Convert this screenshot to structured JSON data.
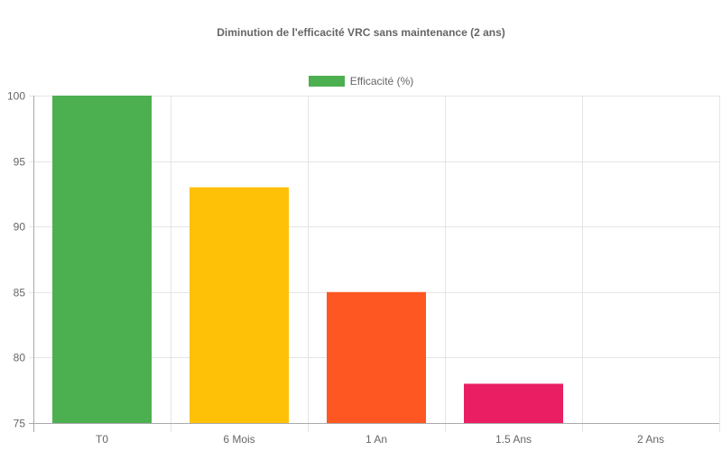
{
  "chart_data": {
    "type": "bar",
    "title": "Diminution de l'efficacité VRC sans maintenance (2 ans)",
    "categories": [
      "T0",
      "6 Mois",
      "1 An",
      "1.5 Ans",
      "2 Ans"
    ],
    "series": [
      {
        "name": "Efficacité (%)",
        "values": [
          100,
          93,
          85,
          78,
          null
        ]
      }
    ],
    "bar_colors": [
      "#4CAF50",
      "#FFC107",
      "#FF5722",
      "#E91E63",
      null
    ],
    "legend_color": "#4CAF50",
    "ylim": [
      75,
      100
    ],
    "yticks": [
      75,
      80,
      85,
      90,
      95,
      100
    ],
    "grid": true,
    "legend_position": "top",
    "xlabel": "",
    "ylabel": ""
  }
}
